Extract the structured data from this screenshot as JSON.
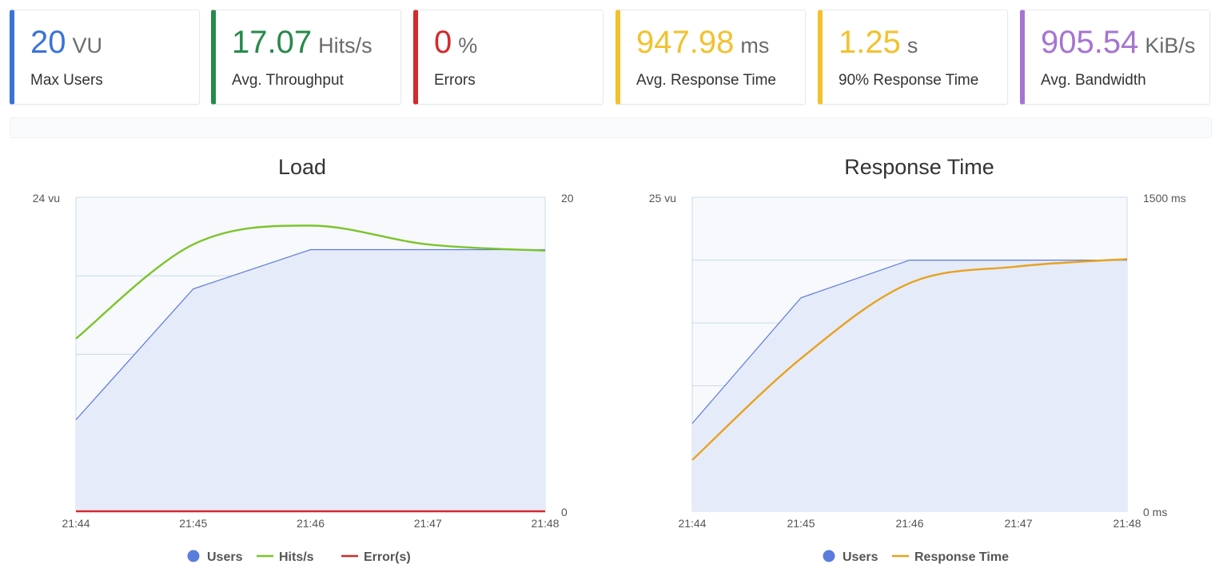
{
  "cards": [
    {
      "value": "20",
      "unit": "VU",
      "label": "Max Users",
      "color": "#3a73d9"
    },
    {
      "value": "17.07",
      "unit": "Hits/s",
      "label": "Avg. Throughput",
      "color": "#268a4a"
    },
    {
      "value": "0",
      "unit": "%",
      "label": "Errors",
      "color": "#d42a2a"
    },
    {
      "value": "947.98",
      "unit": "ms",
      "label": "Avg. Response Time",
      "color": "#f2c12e"
    },
    {
      "value": "1.25",
      "unit": "s",
      "label": "90% Response Time",
      "color": "#f2c12e"
    },
    {
      "value": "905.54",
      "unit": "KiB/s",
      "label": "Avg. Bandwidth",
      "color": "#a574d2"
    }
  ],
  "chart_data": [
    {
      "type": "line",
      "title": "Load",
      "x": [
        "21:44",
        "21:45",
        "21:46",
        "21:47",
        "21:48"
      ],
      "y_left": {
        "min": 0,
        "max": 24,
        "top_label": "24 vu",
        "bottom_label": ""
      },
      "y_right": {
        "min": 0,
        "max": 20,
        "top_label": "20",
        "bottom_label": "0"
      },
      "grid": true,
      "legend_position": "bottom",
      "series": [
        {
          "name": "Users",
          "axis": "left",
          "kind": "area",
          "color": "#5b7bdd",
          "values": [
            7,
            17,
            20,
            20,
            20
          ]
        },
        {
          "name": "Hits/s",
          "axis": "right",
          "kind": "line",
          "color": "#7cc42a",
          "values": [
            11,
            17,
            18.2,
            17,
            16.6
          ]
        },
        {
          "name": "Error(s)",
          "axis": "right",
          "kind": "line",
          "color": "#d42a2a",
          "values": [
            0,
            0,
            0,
            0,
            0
          ]
        }
      ]
    },
    {
      "type": "line",
      "title": "Response Time",
      "x": [
        "21:44",
        "21:45",
        "21:46",
        "21:47",
        "21:48"
      ],
      "y_left": {
        "min": 0,
        "max": 25,
        "top_label": "25 vu",
        "bottom_label": ""
      },
      "y_right": {
        "min": 0,
        "max": 1500,
        "top_label": "1500 ms",
        "bottom_label": "0 ms"
      },
      "grid": true,
      "legend_position": "bottom",
      "series": [
        {
          "name": "Users",
          "axis": "left",
          "kind": "area",
          "color": "#5b7bdd",
          "values": [
            7,
            17,
            20,
            20,
            20
          ]
        },
        {
          "name": "Response Time",
          "axis": "right",
          "kind": "line",
          "color": "#e6a21e",
          "values": [
            245,
            730,
            1090,
            1170,
            1205
          ]
        }
      ]
    }
  ]
}
